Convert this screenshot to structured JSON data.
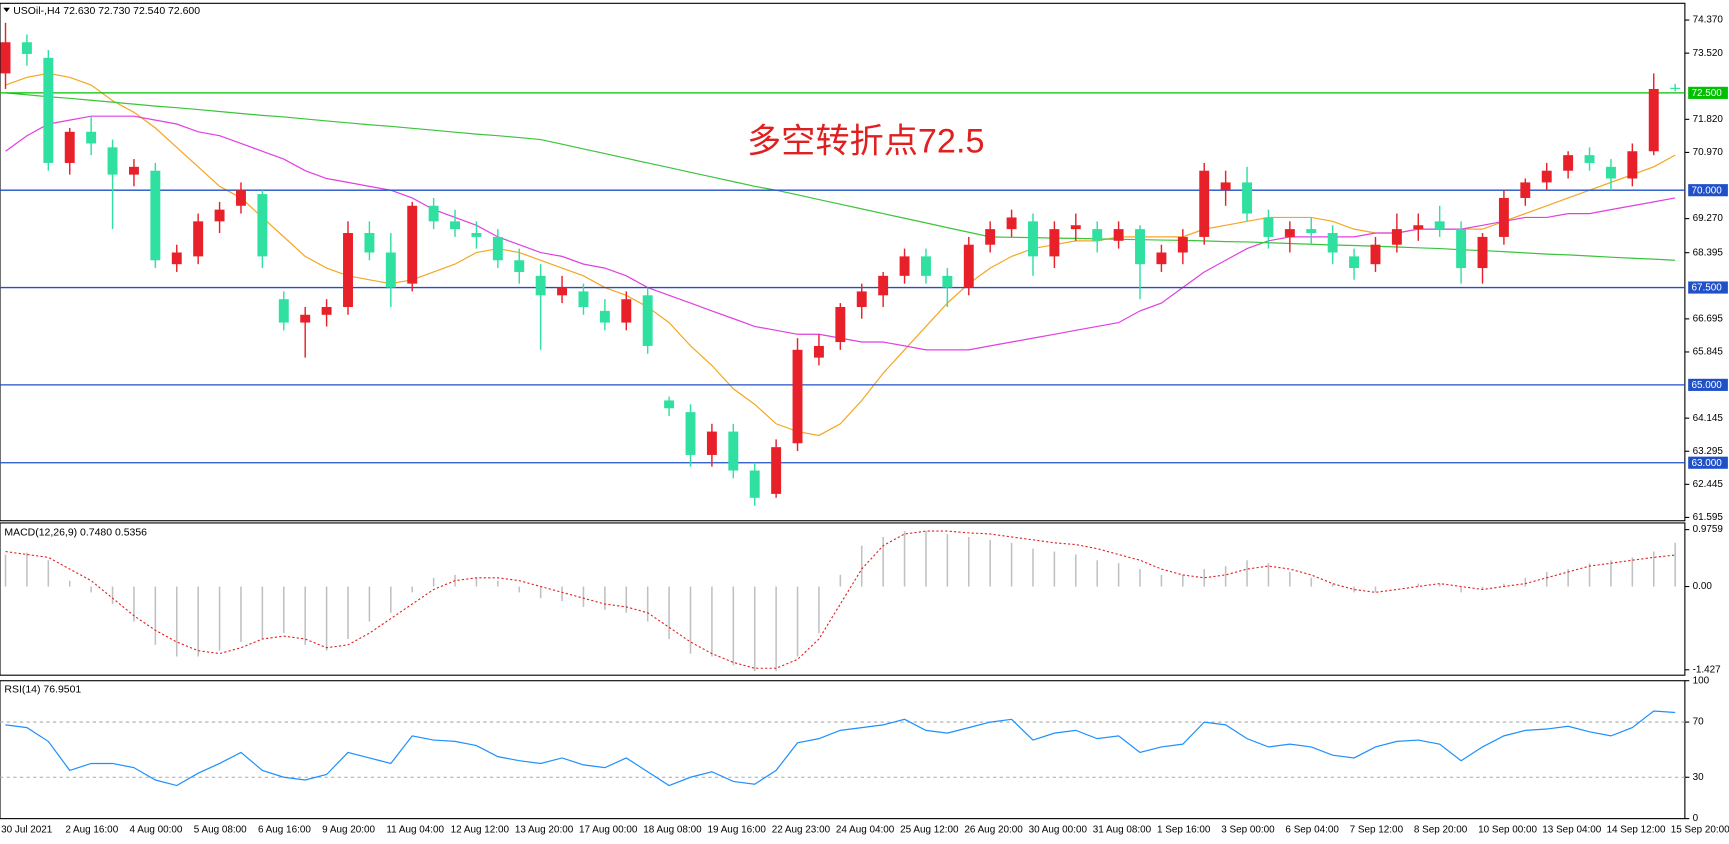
{
  "chart_data": [
    {
      "type": "candlestick",
      "title": "USOil-,H4  72.630 72.730 72.540 72.600",
      "categories": [
        "30 Jul 2021",
        null,
        null,
        "2 Aug 16:00",
        null,
        null,
        "4 Aug 00:00",
        null,
        null,
        "5 Aug 08:00",
        null,
        null,
        "6 Aug 16:00",
        null,
        null,
        "9 Aug 20:00",
        null,
        null,
        "11 Aug 04:00",
        null,
        null,
        "12 Aug 12:00",
        null,
        null,
        "13 Aug 20:00",
        null,
        null,
        "17 Aug 00:00",
        null,
        null,
        "18 Aug 08:00",
        null,
        null,
        "19 Aug 16:00",
        null,
        null,
        "22 Aug 23:00",
        null,
        null,
        "24 Aug 04:00",
        null,
        null,
        "25 Aug 12:00",
        null,
        null,
        "26 Aug 20:00",
        null,
        null,
        "30 Aug 00:00",
        null,
        null,
        "31 Aug 08:00",
        null,
        null,
        "1 Sep 16:00",
        null,
        null,
        "3 Sep 00:00",
        null,
        null,
        "6 Sep 04:00",
        null,
        null,
        "7 Sep 12:00",
        null,
        null,
        "8 Sep 20:00",
        null,
        null,
        "10 Sep 00:00",
        null,
        null,
        "13 Sep 04:00",
        null,
        null,
        "14 Sep 12:00",
        null,
        null,
        "15 Sep 20:00"
      ],
      "ohlc": [
        [
          73.0,
          74.3,
          72.6,
          73.8
        ],
        [
          73.8,
          74.0,
          73.2,
          73.5
        ],
        [
          73.4,
          73.6,
          70.5,
          70.7
        ],
        [
          70.7,
          71.6,
          70.4,
          71.5
        ],
        [
          71.5,
          71.9,
          70.9,
          71.2
        ],
        [
          71.1,
          71.3,
          69.0,
          70.4
        ],
        [
          70.4,
          70.8,
          70.1,
          70.6
        ],
        [
          70.5,
          70.7,
          68.0,
          68.2
        ],
        [
          68.1,
          68.6,
          67.9,
          68.4
        ],
        [
          68.3,
          69.4,
          68.1,
          69.2
        ],
        [
          69.2,
          69.7,
          68.9,
          69.5
        ],
        [
          69.6,
          70.2,
          69.4,
          70.0
        ],
        [
          69.9,
          70.0,
          68.0,
          68.3
        ],
        [
          67.2,
          67.4,
          66.4,
          66.6
        ],
        [
          66.6,
          67.0,
          65.7,
          66.8
        ],
        [
          66.8,
          67.2,
          66.5,
          67.0
        ],
        [
          67.0,
          69.2,
          66.8,
          68.9
        ],
        [
          68.9,
          69.2,
          68.2,
          68.4
        ],
        [
          68.4,
          68.9,
          67.0,
          67.5
        ],
        [
          67.6,
          69.7,
          67.4,
          69.6
        ],
        [
          69.6,
          69.8,
          69.0,
          69.2
        ],
        [
          69.2,
          69.5,
          68.8,
          69.0
        ],
        [
          68.9,
          69.2,
          68.5,
          68.8
        ],
        [
          68.8,
          69.0,
          68.0,
          68.2
        ],
        [
          68.2,
          68.5,
          67.6,
          67.9
        ],
        [
          67.8,
          68.1,
          65.9,
          67.3
        ],
        [
          67.3,
          67.8,
          67.1,
          67.5
        ],
        [
          67.4,
          67.6,
          66.8,
          67.0
        ],
        [
          66.9,
          67.2,
          66.4,
          66.6
        ],
        [
          66.6,
          67.4,
          66.4,
          67.2
        ],
        [
          67.3,
          67.5,
          65.8,
          66.0
        ],
        [
          64.6,
          64.7,
          64.2,
          64.4
        ],
        [
          64.3,
          64.5,
          62.9,
          63.2
        ],
        [
          63.2,
          64.0,
          62.9,
          63.8
        ],
        [
          63.8,
          64.0,
          62.6,
          62.8
        ],
        [
          62.8,
          63.0,
          61.9,
          62.1
        ],
        [
          62.2,
          63.6,
          62.1,
          63.4
        ],
        [
          63.5,
          66.2,
          63.3,
          65.9
        ],
        [
          65.7,
          66.3,
          65.5,
          66.0
        ],
        [
          66.1,
          67.1,
          65.9,
          67.0
        ],
        [
          67.0,
          67.6,
          66.7,
          67.4
        ],
        [
          67.3,
          67.9,
          67.0,
          67.8
        ],
        [
          67.8,
          68.5,
          67.6,
          68.3
        ],
        [
          68.3,
          68.5,
          67.6,
          67.8
        ],
        [
          67.8,
          68.0,
          67.0,
          67.5
        ],
        [
          67.5,
          68.8,
          67.3,
          68.6
        ],
        [
          68.6,
          69.2,
          68.4,
          69.0
        ],
        [
          69.0,
          69.5,
          68.8,
          69.3
        ],
        [
          69.2,
          69.4,
          67.8,
          68.3
        ],
        [
          68.3,
          69.2,
          68.0,
          69.0
        ],
        [
          69.0,
          69.4,
          68.7,
          69.1
        ],
        [
          69.0,
          69.2,
          68.4,
          68.7
        ],
        [
          68.7,
          69.2,
          68.5,
          69.0
        ],
        [
          69.0,
          69.1,
          67.2,
          68.1
        ],
        [
          68.1,
          68.6,
          67.9,
          68.4
        ],
        [
          68.4,
          69.0,
          68.1,
          68.8
        ],
        [
          68.8,
          70.7,
          68.6,
          70.5
        ],
        [
          70.0,
          70.5,
          69.6,
          70.2
        ],
        [
          70.2,
          70.6,
          69.2,
          69.4
        ],
        [
          69.3,
          69.5,
          68.5,
          68.8
        ],
        [
          68.8,
          69.2,
          68.4,
          69.0
        ],
        [
          69.0,
          69.3,
          68.6,
          68.9
        ],
        [
          68.9,
          69.1,
          68.1,
          68.4
        ],
        [
          68.3,
          68.5,
          67.7,
          68.0
        ],
        [
          68.1,
          68.8,
          67.9,
          68.6
        ],
        [
          68.6,
          69.4,
          68.4,
          69.0
        ],
        [
          69.0,
          69.4,
          68.7,
          69.1
        ],
        [
          69.2,
          69.6,
          68.8,
          69.0
        ],
        [
          69.0,
          69.2,
          67.6,
          68.0
        ],
        [
          68.0,
          68.9,
          67.6,
          68.8
        ],
        [
          68.8,
          70.0,
          68.6,
          69.8
        ],
        [
          69.8,
          70.3,
          69.6,
          70.2
        ],
        [
          70.2,
          70.7,
          70.0,
          70.5
        ],
        [
          70.5,
          71.0,
          70.3,
          70.9
        ],
        [
          70.9,
          71.1,
          70.5,
          70.7
        ],
        [
          70.6,
          70.8,
          70.0,
          70.3
        ],
        [
          70.3,
          71.2,
          70.1,
          71.0
        ],
        [
          71.0,
          73.0,
          70.9,
          72.6
        ],
        [
          72.63,
          72.73,
          72.54,
          72.6
        ]
      ],
      "up_color": "#e8202a",
      "down_color": "#2fe0a0",
      "series": [
        {
          "color": "#f5a623",
          "values": [
            72.7,
            72.9,
            73.0,
            72.9,
            72.7,
            72.3,
            72.0,
            71.6,
            71.1,
            70.6,
            70.1,
            69.8,
            69.3,
            68.8,
            68.3,
            68.0,
            67.8,
            67.7,
            67.6,
            67.7,
            67.9,
            68.1,
            68.4,
            68.5,
            68.4,
            68.2,
            68.0,
            67.8,
            67.5,
            67.3,
            67.0,
            66.6,
            66.0,
            65.5,
            64.9,
            64.5,
            64.0,
            63.8,
            63.7,
            64.0,
            64.6,
            65.3,
            65.9,
            66.5,
            67.1,
            67.6,
            68.0,
            68.3,
            68.5,
            68.6,
            68.7,
            68.7,
            68.8,
            68.8,
            68.8,
            68.8,
            69.0,
            69.1,
            69.2,
            69.3,
            69.3,
            69.3,
            69.2,
            69.0,
            68.9,
            68.9,
            69.0,
            69.0,
            69.0,
            69.0,
            69.2,
            69.4,
            69.6,
            69.8,
            70.0,
            70.2,
            70.4,
            70.6,
            70.9
          ]
        },
        {
          "color": "#e040e0",
          "values": [
            71.0,
            71.4,
            71.7,
            71.8,
            71.9,
            71.9,
            71.9,
            71.8,
            71.7,
            71.5,
            71.4,
            71.2,
            71.0,
            70.8,
            70.5,
            70.3,
            70.2,
            70.1,
            70.0,
            69.8,
            69.5,
            69.3,
            69.1,
            68.8,
            68.6,
            68.4,
            68.3,
            68.1,
            68.0,
            67.8,
            67.5,
            67.3,
            67.1,
            66.9,
            66.7,
            66.5,
            66.4,
            66.3,
            66.3,
            66.2,
            66.1,
            66.1,
            66.0,
            65.9,
            65.9,
            65.9,
            66.0,
            66.1,
            66.2,
            66.3,
            66.4,
            66.5,
            66.6,
            66.9,
            67.1,
            67.5,
            67.9,
            68.2,
            68.5,
            68.7,
            68.8,
            68.8,
            68.8,
            68.8,
            68.9,
            68.9,
            69.0,
            69.0,
            69.0,
            69.1,
            69.2,
            69.3,
            69.3,
            69.4,
            69.4,
            69.5,
            69.6,
            69.7,
            69.8
          ]
        },
        {
          "color": "#3cc43c",
          "values": [
            72.5,
            72.45,
            72.4,
            72.36,
            72.31,
            72.26,
            72.21,
            72.16,
            72.12,
            72.07,
            72.02,
            71.97,
            71.92,
            71.88,
            71.83,
            71.78,
            71.73,
            71.68,
            71.64,
            71.59,
            71.54,
            71.49,
            71.44,
            71.4,
            71.35,
            71.3,
            71.18,
            71.06,
            70.94,
            70.82,
            70.7,
            70.58,
            70.46,
            70.34,
            70.22,
            70.1,
            70.0,
            69.88,
            69.76,
            69.64,
            69.52,
            69.4,
            69.28,
            69.16,
            69.04,
            68.92,
            68.8,
            68.79,
            68.78,
            68.77,
            68.76,
            68.75,
            68.74,
            68.73,
            68.72,
            68.71,
            68.7,
            68.68,
            68.67,
            68.65,
            68.63,
            68.61,
            68.59,
            68.58,
            68.56,
            68.54,
            68.52,
            68.5,
            68.47,
            68.45,
            68.42,
            68.39,
            68.36,
            68.34,
            68.31,
            68.28,
            68.25,
            68.23,
            68.2
          ]
        }
      ],
      "levels": [
        {
          "value": 72.5,
          "label": "72.500",
          "color": "#00c000"
        },
        {
          "value": 70,
          "label": "70.000",
          "color": "#2050c8"
        },
        {
          "value": 67.5,
          "label": "67.500",
          "color": "#2050c8"
        },
        {
          "value": 65,
          "label": "65.000",
          "color": "#2050c8"
        },
        {
          "value": 63,
          "label": "63.000",
          "color": "#2050c8"
        }
      ],
      "annotation": "多空转折点72.5",
      "ylim": [
        61.51,
        74.8
      ],
      "yticks": [
        {
          "value": 74.37,
          "label": "74.370"
        },
        {
          "value": 73.52,
          "label": "73.520"
        },
        {
          "value": 71.82,
          "label": "71.820"
        },
        {
          "value": 70.97,
          "label": "70.970"
        },
        {
          "value": 69.27,
          "label": "69.270"
        },
        {
          "value": 68.395,
          "label": "68.395"
        },
        {
          "value": 66.695,
          "label": "66.695"
        },
        {
          "value": 65.845,
          "label": "65.845"
        },
        {
          "value": 64.145,
          "label": "64.145"
        },
        {
          "value": 63.295,
          "label": "63.295"
        },
        {
          "value": 62.445,
          "label": "62.445"
        },
        {
          "value": 61.595,
          "label": "61.595"
        }
      ]
    },
    {
      "type": "macd",
      "title": "MACD(12,26,9) 0.7480 0.5356",
      "histogram": {
        "color": "#c0c0c0",
        "values": [
          0.55,
          0.58,
          0.45,
          0.1,
          -0.1,
          -0.3,
          -0.6,
          -1.0,
          -1.2,
          -1.2,
          -1.1,
          -0.95,
          -0.9,
          -0.8,
          -1.0,
          -1.1,
          -0.9,
          -0.6,
          -0.45,
          -0.1,
          0.15,
          0.2,
          0.15,
          0.1,
          -0.1,
          -0.2,
          -0.25,
          -0.35,
          -0.4,
          -0.45,
          -0.6,
          -0.9,
          -1.15,
          -1.2,
          -1.35,
          -1.45,
          -1.45,
          -1.2,
          -0.8,
          0.2,
          0.7,
          0.85,
          0.95,
          0.95,
          0.9,
          0.85,
          0.8,
          0.75,
          0.65,
          0.6,
          0.55,
          0.45,
          0.4,
          0.3,
          0.2,
          0.2,
          0.3,
          0.35,
          0.45,
          0.4,
          0.25,
          0.15,
          0.05,
          -0.1,
          -0.1,
          0.0,
          0.05,
          0.05,
          -0.1,
          -0.05,
          0.05,
          0.15,
          0.25,
          0.3,
          0.4,
          0.45,
          0.5,
          0.6,
          0.75
        ]
      },
      "signal": {
        "color": "#e02020",
        "values": [
          0.6,
          0.55,
          0.5,
          0.3,
          0.1,
          -0.2,
          -0.5,
          -0.75,
          -0.95,
          -1.1,
          -1.15,
          -1.05,
          -0.9,
          -0.85,
          -0.9,
          -1.05,
          -1.0,
          -0.8,
          -0.55,
          -0.3,
          -0.05,
          0.1,
          0.15,
          0.15,
          0.1,
          0.0,
          -0.1,
          -0.2,
          -0.3,
          -0.35,
          -0.45,
          -0.7,
          -0.95,
          -1.15,
          -1.3,
          -1.4,
          -1.4,
          -1.25,
          -0.9,
          -0.3,
          0.3,
          0.7,
          0.9,
          0.95,
          0.95,
          0.92,
          0.9,
          0.85,
          0.8,
          0.75,
          0.72,
          0.65,
          0.55,
          0.45,
          0.3,
          0.2,
          0.15,
          0.2,
          0.3,
          0.35,
          0.3,
          0.2,
          0.05,
          -0.05,
          -0.1,
          -0.05,
          0.0,
          0.05,
          0.0,
          -0.05,
          0.0,
          0.05,
          0.15,
          0.25,
          0.35,
          0.4,
          0.45,
          0.5,
          0.54
        ]
      },
      "ylim": [
        -1.52,
        1.09
      ],
      "yticks": [
        0.9759,
        {
          "value": 0,
          "label": "0.00"
        },
        -1.427
      ]
    },
    {
      "type": "line",
      "title": "RSI(14) 76.9501",
      "series": [
        {
          "color": "#1e90ff",
          "values": [
            68,
            66,
            56,
            35,
            40,
            40,
            37,
            28,
            24,
            33,
            40,
            48,
            35,
            30,
            28,
            32,
            48,
            44,
            40,
            60,
            57,
            56,
            53,
            45,
            42,
            40,
            44,
            39,
            37,
            44,
            34,
            24,
            30,
            34,
            27,
            25,
            35,
            55,
            58,
            64,
            66,
            68,
            72,
            64,
            62,
            66,
            70,
            72,
            57,
            62,
            64,
            58,
            60,
            48,
            52,
            54,
            70,
            68,
            58,
            52,
            54,
            52,
            46,
            44,
            52,
            56,
            57,
            54,
            42,
            52,
            60,
            64,
            65,
            67,
            63,
            60,
            66,
            78,
            77
          ]
        }
      ],
      "levels": [
        70,
        30
      ],
      "ylim": [
        0,
        100
      ],
      "yticks": [
        0,
        30,
        70,
        100
      ]
    }
  ]
}
